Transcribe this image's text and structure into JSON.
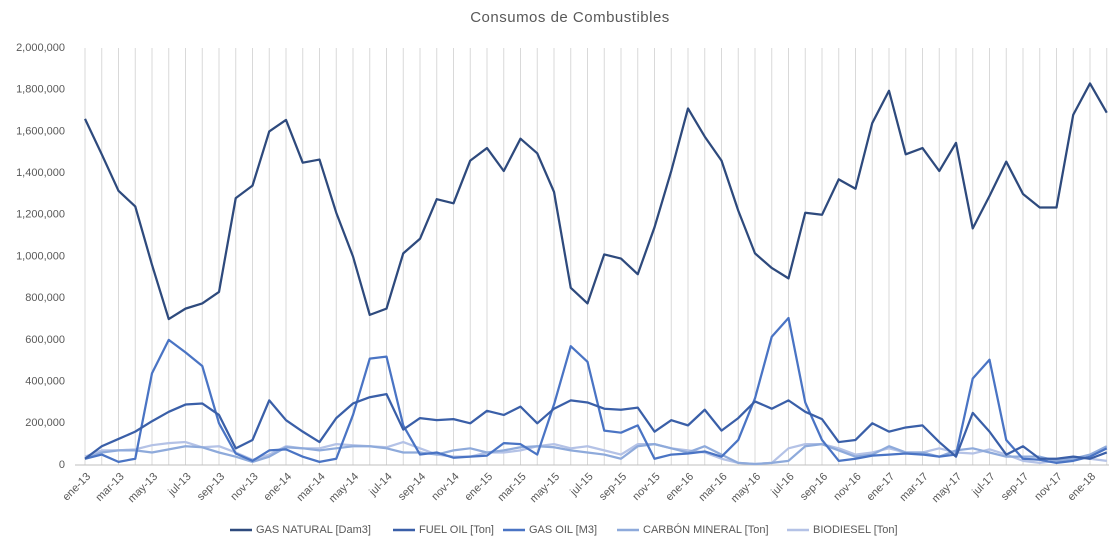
{
  "chart_data": {
    "type": "line",
    "title": "Consumos de Combustibles",
    "categories": [
      "ene-13",
      null,
      "mar-13",
      null,
      "may-13",
      null,
      "jul-13",
      null,
      "sep-13",
      null,
      "nov-13",
      null,
      "ene-14",
      null,
      "mar-14",
      null,
      "may-14",
      null,
      "jul-14",
      null,
      "sep-14",
      null,
      "nov-14",
      null,
      "ene-15",
      null,
      "mar-15",
      null,
      "may-15",
      null,
      "jul-15",
      null,
      "sep-15",
      null,
      "nov-15",
      null,
      "ene-16",
      null,
      "mar-16",
      null,
      "may-16",
      null,
      "jul-16",
      null,
      "sep-16",
      null,
      "nov-16",
      null,
      "ene-17",
      null,
      "mar-17",
      null,
      "may-17",
      null,
      "jul-17",
      null,
      "sep-17",
      null,
      "nov-17",
      null,
      "ene-18",
      null
    ],
    "series": [
      {
        "name": "GAS NATURAL [Dam3]",
        "color": "#2e4a7d",
        "values": [
          1660000,
          1490000,
          1315000,
          1240000,
          960000,
          700000,
          750000,
          775000,
          830000,
          1280000,
          1340000,
          1600000,
          1655000,
          1450000,
          1465000,
          1210000,
          1000000,
          720000,
          750000,
          1015000,
          1085000,
          1275000,
          1255000,
          1460000,
          1520000,
          1410000,
          1565000,
          1495000,
          1310000,
          850000,
          775000,
          1010000,
          990000,
          915000,
          1140000,
          1410000,
          1710000,
          1575000,
          1460000,
          1220000,
          1015000,
          945000,
          895000,
          1210000,
          1200000,
          1370000,
          1325000,
          1640000,
          1795000,
          1490000,
          1520000,
          1410000,
          1545000,
          1135000,
          1290000,
          1455000,
          1300000,
          1235000,
          1235000,
          1680000,
          1830000,
          1690000
        ]
      },
      {
        "name": "FUEL OIL [Ton]",
        "color": "#3a5fa8",
        "values": [
          30000,
          90000,
          125000,
          160000,
          210000,
          255000,
          290000,
          295000,
          240000,
          80000,
          120000,
          310000,
          215000,
          160000,
          110000,
          225000,
          295000,
          325000,
          340000,
          170000,
          225000,
          215000,
          220000,
          200000,
          260000,
          240000,
          280000,
          200000,
          270000,
          310000,
          300000,
          270000,
          265000,
          275000,
          160000,
          215000,
          190000,
          265000,
          165000,
          225000,
          305000,
          270000,
          310000,
          255000,
          220000,
          110000,
          120000,
          200000,
          160000,
          180000,
          190000,
          110000,
          40000,
          250000,
          160000,
          50000,
          90000,
          30000,
          30000,
          40000,
          30000,
          60000
        ]
      },
      {
        "name": "GAS OIL [M3]",
        "color": "#4a74c4",
        "values": [
          30000,
          50000,
          15000,
          30000,
          440000,
          600000,
          540000,
          475000,
          200000,
          55000,
          20000,
          70000,
          75000,
          40000,
          15000,
          30000,
          240000,
          510000,
          520000,
          190000,
          50000,
          60000,
          35000,
          40000,
          45000,
          105000,
          100000,
          50000,
          290000,
          570000,
          495000,
          165000,
          155000,
          190000,
          30000,
          50000,
          55000,
          65000,
          40000,
          120000,
          320000,
          615000,
          705000,
          300000,
          120000,
          20000,
          30000,
          45000,
          50000,
          55000,
          50000,
          40000,
          50000,
          415000,
          505000,
          120000,
          30000,
          25000,
          10000,
          20000,
          40000,
          80000
        ]
      },
      {
        "name": "CARBÓN MINERAL [Ton]",
        "color": "#8eaadb",
        "values": [
          30000,
          60000,
          70000,
          70000,
          60000,
          75000,
          90000,
          85000,
          60000,
          40000,
          15000,
          40000,
          85000,
          80000,
          70000,
          80000,
          90000,
          90000,
          80000,
          60000,
          60000,
          50000,
          70000,
          80000,
          60000,
          70000,
          85000,
          90000,
          85000,
          70000,
          60000,
          50000,
          30000,
          90000,
          100000,
          80000,
          60000,
          90000,
          50000,
          10000,
          5000,
          10000,
          20000,
          90000,
          100000,
          70000,
          40000,
          50000,
          90000,
          60000,
          60000,
          40000,
          70000,
          80000,
          60000,
          40000,
          40000,
          40000,
          20000,
          30000,
          50000,
          90000
        ]
      },
      {
        "name": "BIODIESEL [Ton]",
        "color": "#b4c2e6",
        "values": [
          40000,
          70000,
          70000,
          75000,
          95000,
          105000,
          110000,
          85000,
          90000,
          60000,
          25000,
          50000,
          90000,
          80000,
          80000,
          100000,
          95000,
          90000,
          85000,
          110000,
          80000,
          50000,
          40000,
          40000,
          60000,
          60000,
          70000,
          90000,
          100000,
          80000,
          90000,
          70000,
          50000,
          100000,
          100000,
          80000,
          70000,
          60000,
          30000,
          10000,
          5000,
          10000,
          80000,
          100000,
          100000,
          80000,
          50000,
          60000,
          80000,
          60000,
          60000,
          80000,
          60000,
          55000,
          75000,
          50000,
          20000,
          10000,
          20000,
          40000,
          30000,
          20000
        ]
      }
    ],
    "ylim": [
      0,
      2000000
    ],
    "yticks": [
      0,
      {
        "value": 200000,
        "label": "200,000"
      },
      {
        "value": 400000,
        "label": "400,000"
      },
      {
        "value": 600000,
        "label": "600,000"
      },
      {
        "value": 800000,
        "label": "800,000"
      },
      {
        "value": 1000000,
        "label": "1,000,000"
      },
      {
        "value": 1200000,
        "label": "1,200,000"
      },
      {
        "value": 1400000,
        "label": "1,400,000"
      },
      {
        "value": 1600000,
        "label": "1,600,000"
      },
      {
        "value": 1800000,
        "label": "1,800,000"
      },
      {
        "value": 2000000,
        "label": "2,000,000"
      }
    ],
    "legend": "bottom"
  }
}
